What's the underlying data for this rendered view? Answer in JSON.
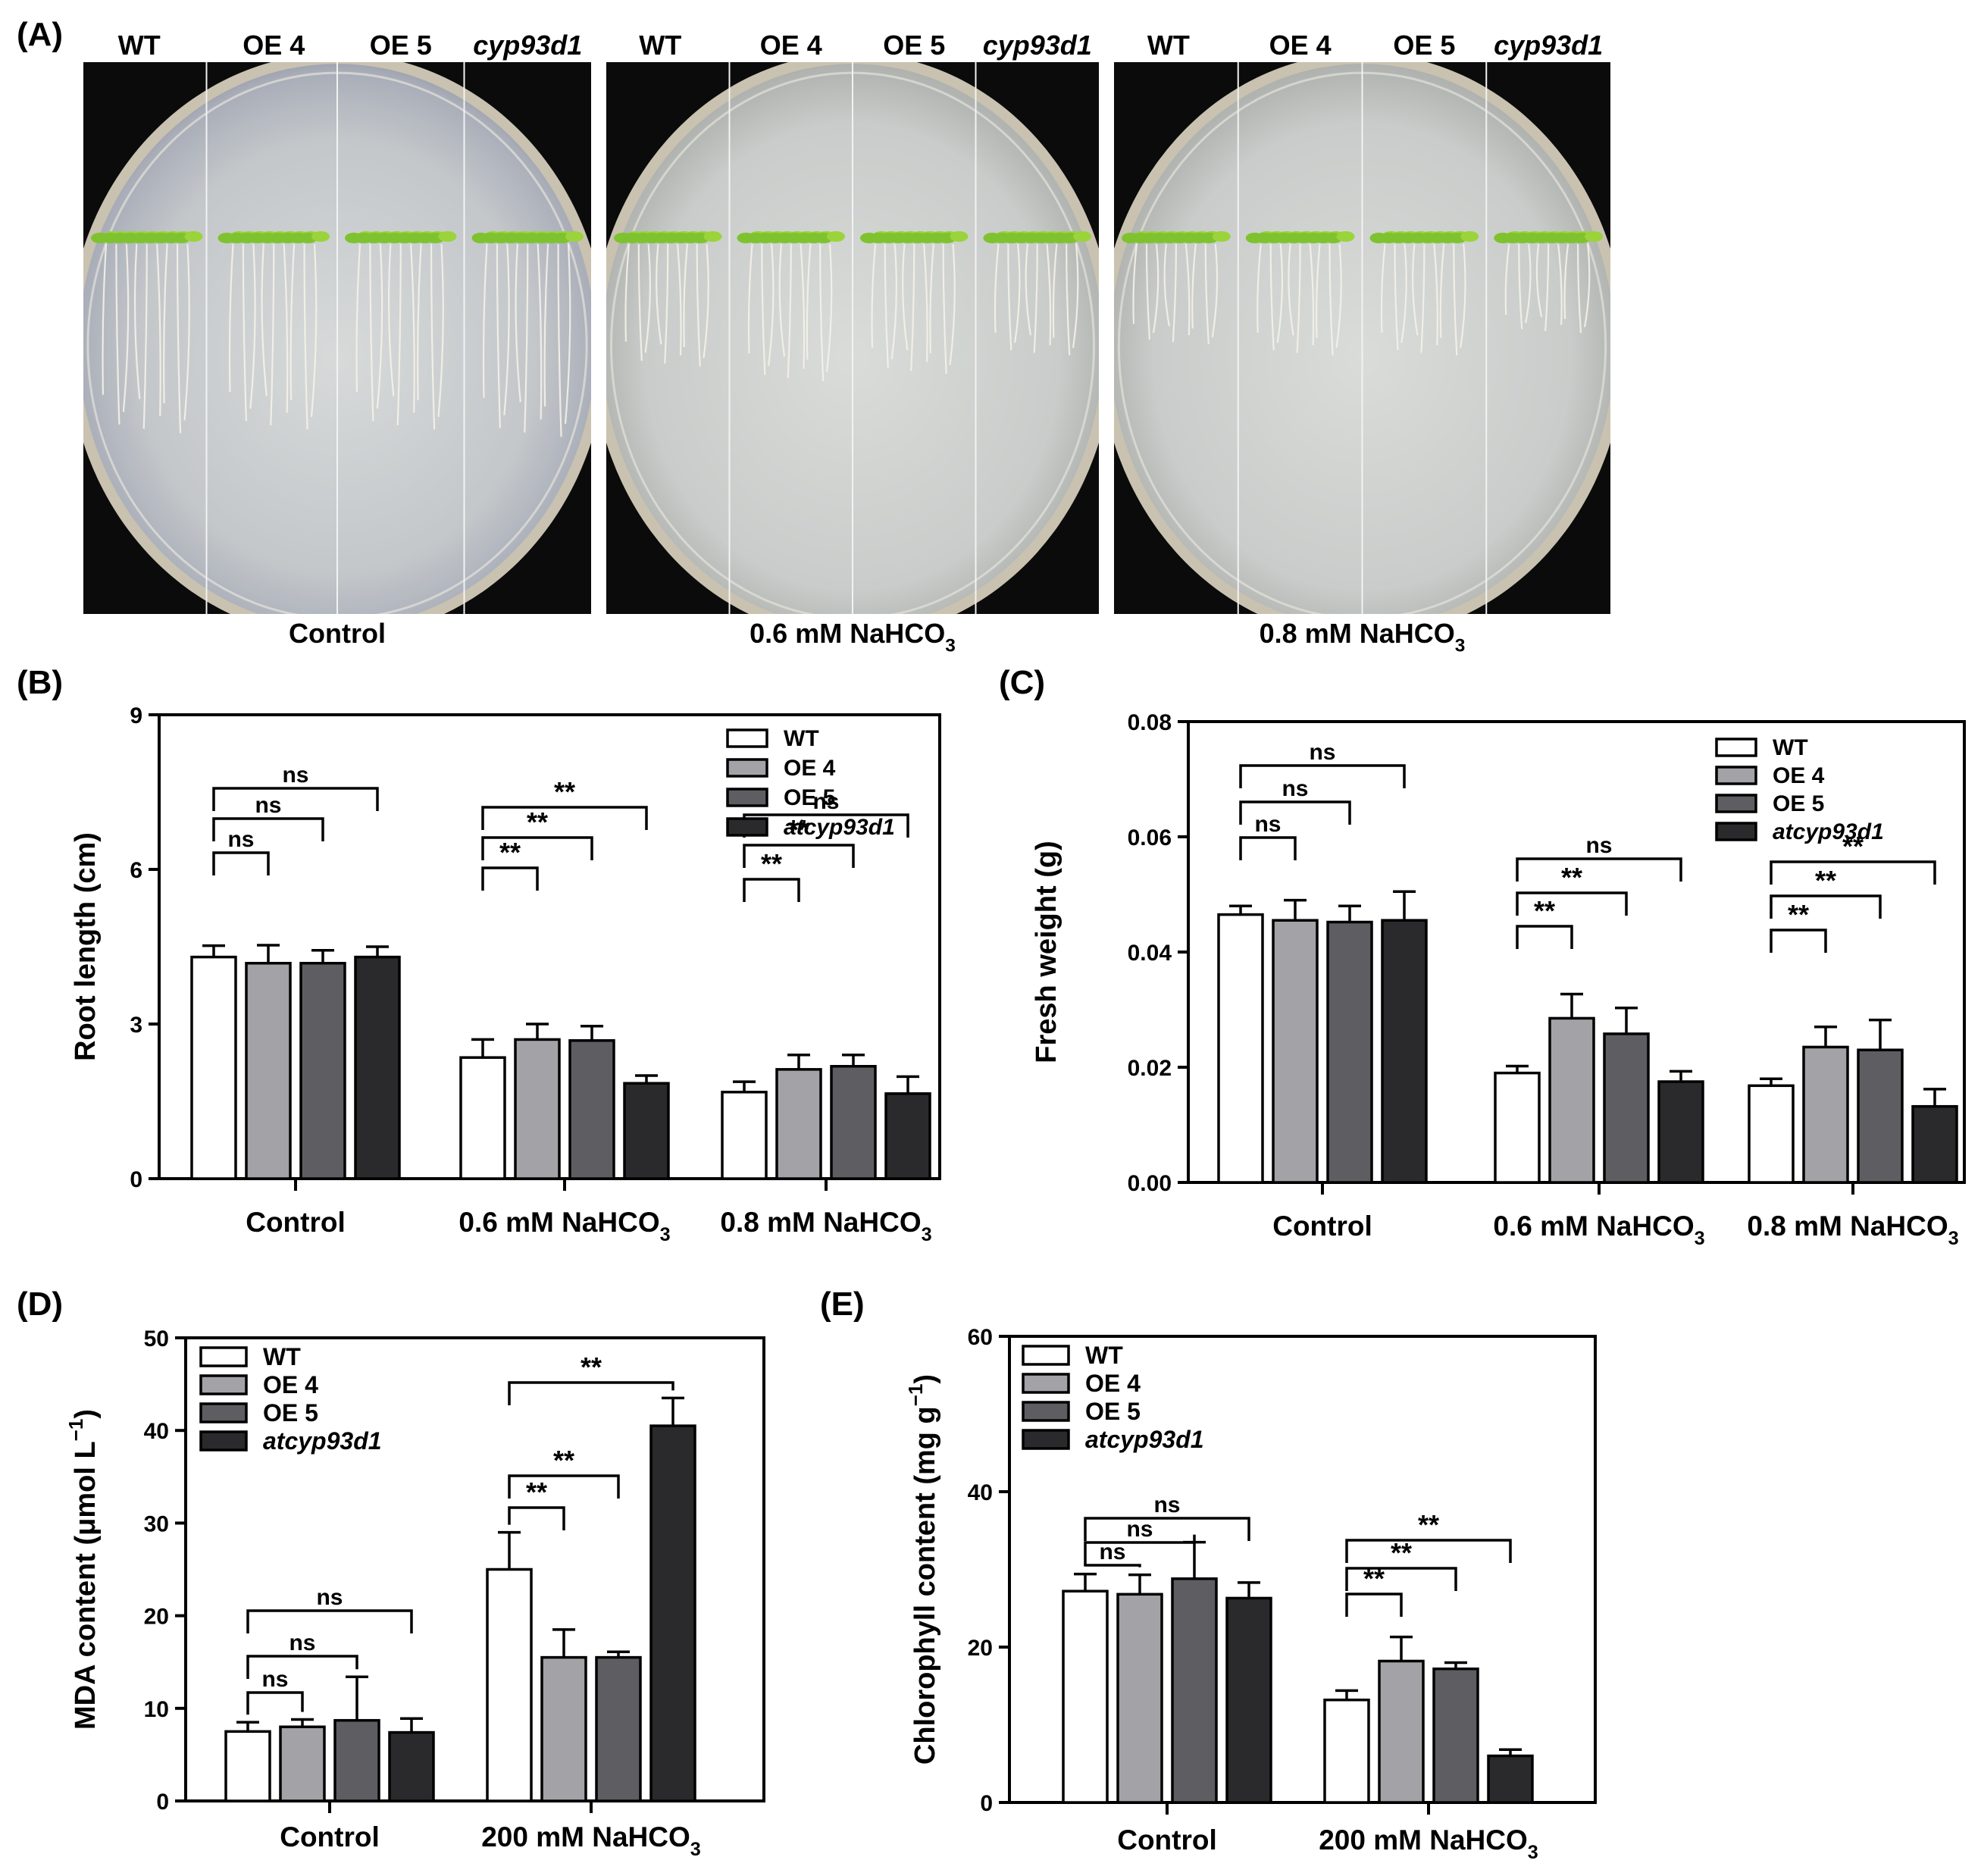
{
  "panel_a": {
    "letter": "(A)",
    "column_labels": [
      "WT",
      "OE 4",
      "OE 5",
      "cyp93d1"
    ],
    "plates": [
      {
        "label": "Control",
        "sub": ""
      },
      {
        "label": "0.6 mM NaHCO",
        "sub": "3"
      },
      {
        "label": "0.8 mM NaHCO",
        "sub": "3"
      }
    ]
  },
  "colors": {
    "WT": "#ffffff",
    "OE 4": "#a3a3a7",
    "OE 5": "#5e5e62",
    "atcyp93d1": "#2a2a2c"
  },
  "chart_data": [
    {
      "id": "B",
      "letter": "(B)",
      "type": "bar",
      "ylabel": "Root length (cm)",
      "ylim": [
        0,
        9
      ],
      "yticks": [
        "0",
        "3",
        "6",
        "9"
      ],
      "categories": [
        {
          "text": "Control",
          "sub": ""
        },
        {
          "text": "0.6 mM NaHCO",
          "sub": "3"
        },
        {
          "text": "0.8 mM NaHCO",
          "sub": "3"
        }
      ],
      "series": [
        {
          "name": "WT",
          "values": [
            4.3,
            2.35,
            1.68
          ],
          "errors": [
            0.22,
            0.35,
            0.2
          ]
        },
        {
          "name": "OE 4",
          "values": [
            4.18,
            2.7,
            2.12
          ],
          "errors": [
            0.35,
            0.3,
            0.28
          ]
        },
        {
          "name": "OE 5",
          "values": [
            4.18,
            2.68,
            2.18
          ],
          "errors": [
            0.25,
            0.28,
            0.22
          ]
        },
        {
          "name": "atcyp93d1",
          "values": [
            4.3,
            1.85,
            1.65
          ],
          "errors": [
            0.2,
            0.15,
            0.33
          ]
        }
      ],
      "significance": [
        [
          {
            "to": 1,
            "text": "ns"
          },
          {
            "to": 2,
            "text": "ns"
          },
          {
            "to": 3,
            "text": "ns"
          }
        ],
        [
          {
            "to": 1,
            "text": "**"
          },
          {
            "to": 2,
            "text": "**"
          },
          {
            "to": 3,
            "text": "**"
          }
        ],
        [
          {
            "to": 1,
            "text": "**"
          },
          {
            "to": 2,
            "text": "**"
          },
          {
            "to": 3,
            "text": "ns"
          }
        ]
      ]
    },
    {
      "id": "C",
      "letter": "(C)",
      "type": "bar",
      "ylabel": "Fresh weight (g)",
      "ylim": [
        0,
        0.08
      ],
      "yticks": [
        "0.00",
        "0.02",
        "0.04",
        "0.06",
        "0.08"
      ],
      "categories": [
        {
          "text": "Control",
          "sub": ""
        },
        {
          "text": "0.6 mM NaHCO",
          "sub": "3"
        },
        {
          "text": "0.8 mM NaHCO",
          "sub": "3"
        }
      ],
      "series": [
        {
          "name": "WT",
          "values": [
            0.0465,
            0.019,
            0.0168
          ],
          "errors": [
            0.0015,
            0.0012,
            0.0012
          ]
        },
        {
          "name": "OE 4",
          "values": [
            0.0455,
            0.0285,
            0.0235
          ],
          "errors": [
            0.0035,
            0.0042,
            0.0035
          ]
        },
        {
          "name": "OE 5",
          "values": [
            0.0452,
            0.0258,
            0.023
          ],
          "errors": [
            0.0028,
            0.0045,
            0.0052
          ]
        },
        {
          "name": "atcyp93d1",
          "values": [
            0.0455,
            0.0175,
            0.0132
          ],
          "errors": [
            0.005,
            0.0018,
            0.003
          ]
        }
      ],
      "significance": [
        [
          {
            "to": 1,
            "text": "ns"
          },
          {
            "to": 2,
            "text": "ns"
          },
          {
            "to": 3,
            "text": "ns"
          }
        ],
        [
          {
            "to": 1,
            "text": "**"
          },
          {
            "to": 2,
            "text": "**"
          },
          {
            "to": 3,
            "text": "ns"
          }
        ],
        [
          {
            "to": 1,
            "text": "**"
          },
          {
            "to": 2,
            "text": "**"
          },
          {
            "to": 3,
            "text": "**"
          }
        ]
      ]
    },
    {
      "id": "D",
      "letter": "(D)",
      "type": "bar",
      "ylabel": "MDA content (μmol L",
      "ylabel_sup": "−1",
      "ylabel_close": ")",
      "ylim": [
        0,
        50
      ],
      "yticks": [
        "0",
        "10",
        "20",
        "30",
        "40",
        "50"
      ],
      "categories": [
        {
          "text": "Control",
          "sub": ""
        },
        {
          "text": "200 mM NaHCO",
          "sub": "3"
        }
      ],
      "series": [
        {
          "name": "WT",
          "values": [
            7.5,
            25
          ],
          "errors": [
            1.0,
            4.0
          ]
        },
        {
          "name": "OE 4",
          "values": [
            8.0,
            15.5
          ],
          "errors": [
            0.8,
            3.0
          ]
        },
        {
          "name": "OE 5",
          "values": [
            8.7,
            15.5
          ],
          "errors": [
            4.7,
            0.6
          ]
        },
        {
          "name": "atcyp93d1",
          "values": [
            7.4,
            40.5
          ],
          "errors": [
            1.5,
            3.0
          ]
        }
      ],
      "significance": [
        [
          {
            "to": 1,
            "text": "ns"
          },
          {
            "to": 2,
            "text": "ns"
          },
          {
            "to": 3,
            "text": "ns"
          }
        ],
        [
          {
            "to": 1,
            "text": "**"
          },
          {
            "to": 2,
            "text": "**"
          },
          {
            "to": 3,
            "text": "**"
          }
        ]
      ]
    },
    {
      "id": "E",
      "letter": "(E)",
      "type": "bar",
      "ylabel": "Chlorophyll content (mg g",
      "ylabel_sup": "−1",
      "ylabel_close": ")",
      "ylim": [
        0,
        60
      ],
      "yticks": [
        "0",
        "20",
        "40",
        "60"
      ],
      "categories": [
        {
          "text": "Control",
          "sub": ""
        },
        {
          "text": "200 mM NaHCO",
          "sub": "3"
        }
      ],
      "series": [
        {
          "name": "WT",
          "values": [
            27.2,
            13.2
          ],
          "errors": [
            2.2,
            1.2
          ]
        },
        {
          "name": "OE 4",
          "values": [
            26.8,
            18.2
          ],
          "errors": [
            2.5,
            3.1
          ]
        },
        {
          "name": "OE 5",
          "values": [
            28.8,
            17.2
          ],
          "errors": [
            4.7,
            0.8
          ]
        },
        {
          "name": "atcyp93d1",
          "values": [
            26.3,
            6.0
          ],
          "errors": [
            2.0,
            0.8
          ]
        }
      ],
      "significance": [
        [
          {
            "to": 1,
            "text": "ns"
          },
          {
            "to": 2,
            "text": "ns"
          },
          {
            "to": 3,
            "text": "ns"
          }
        ],
        [
          {
            "to": 1,
            "text": "**"
          },
          {
            "to": 2,
            "text": "**"
          },
          {
            "to": 3,
            "text": "**"
          }
        ]
      ]
    }
  ]
}
